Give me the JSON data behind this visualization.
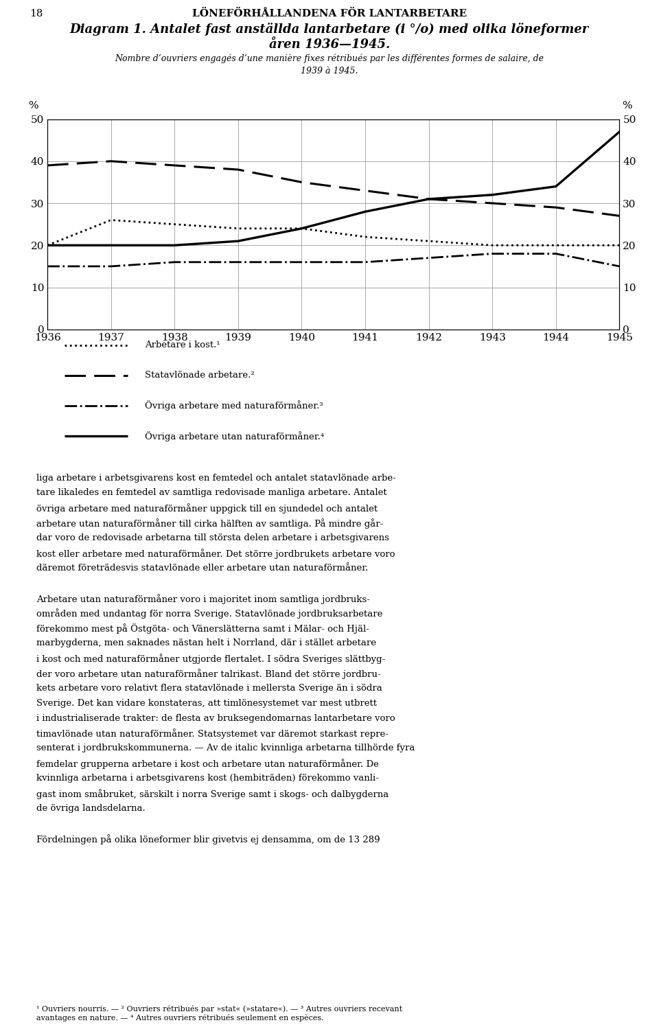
{
  "years": [
    1936,
    1937,
    1938,
    1939,
    1940,
    1941,
    1942,
    1943,
    1944,
    1945
  ],
  "arbetare_i_kost": [
    20,
    26,
    25,
    24,
    24,
    22,
    21,
    20,
    20,
    20
  ],
  "statavlonade": [
    39,
    40,
    39,
    38,
    35,
    33,
    31,
    30,
    29,
    27
  ],
  "ovriga_med_naturaformaner": [
    15,
    15,
    16,
    16,
    16,
    16,
    17,
    18,
    18,
    15
  ],
  "ovriga_utan_naturaformaner": [
    20,
    20,
    20,
    21,
    24,
    28,
    31,
    32,
    34,
    47
  ],
  "legend_1": "Arbetare i kost.¹",
  "legend_2": "Statavlönade arbetare.²",
  "legend_3": "Övriga arbetare med naturaförmåner.³",
  "legend_4": "Övriga arbetare utan naturaförmåner.⁴",
  "ylim": [
    0,
    50
  ],
  "yticks": [
    0,
    10,
    20,
    30,
    40,
    50
  ],
  "bg_color": "#ffffff",
  "grid_color": "#999999"
}
